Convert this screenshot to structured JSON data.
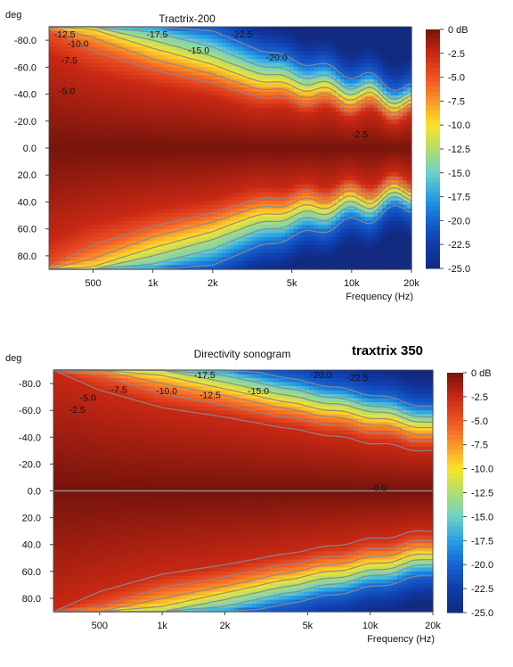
{
  "chart_data": [
    {
      "type": "heatmap",
      "title": "Tractrix-200",
      "subtitle": "",
      "ylabel": "deg",
      "xlabel": "Frequency (Hz)",
      "x_scale": "log",
      "xlim": [
        300,
        20000
      ],
      "ylim": [
        -90,
        90
      ],
      "y_ticks": [
        -80,
        -60,
        -40,
        -20,
        0,
        20,
        40,
        60,
        80
      ],
      "y_tick_labels": [
        "-80.0",
        "-60.0",
        "-40.0",
        "-20.0",
        "0.0",
        "20.0",
        "40.0",
        "60.0",
        "80.0"
      ],
      "x_ticks": [
        500,
        1000,
        2000,
        5000,
        10000,
        20000
      ],
      "x_tick_labels": [
        "500",
        "1k",
        "2k",
        "5k",
        "10k",
        "20k"
      ],
      "colorbar": {
        "ticks": [
          "0 dB",
          "-2.5",
          "-5.0",
          "-7.5",
          "-10.0",
          "-12.5",
          "-15.0",
          "-17.5",
          "-20.0",
          "-22.5",
          "-25.0"
        ],
        "min": -25,
        "max": 0
      },
      "contour_levels": [
        -5,
        -7.5,
        -10,
        -12.5,
        -15,
        -20
      ],
      "contours_half_angle_deg": {
        "frequencies_hz": [
          300,
          500,
          1000,
          2000,
          3000,
          5000,
          10000,
          20000
        ],
        "series": [
          {
            "level_db": -2.5,
            "values": [
              70,
              55,
              45,
              38,
              30,
              28,
              25,
              20
            ]
          },
          {
            "level_db": -5.0,
            "values": [
              88,
              72,
              58,
              48,
              40,
              35,
              30,
              25
            ]
          },
          {
            "level_db": -7.5,
            "values": [
              90,
              82,
              66,
              55,
              46,
              41,
              35,
              29
            ]
          },
          {
            "level_db": -10.0,
            "values": [
              90,
              88,
              74,
              62,
              52,
              46,
              39,
              32
            ]
          },
          {
            "level_db": -12.5,
            "values": [
              90,
              90,
              80,
              68,
              58,
              51,
              43,
              35
            ]
          },
          {
            "level_db": -15.0,
            "values": [
              90,
              90,
              86,
              75,
              64,
              56,
              47,
              38
            ]
          },
          {
            "level_db": -17.5,
            "values": [
              90,
              90,
              90,
              81,
              70,
              61,
              51,
              41
            ]
          },
          {
            "level_db": -20.0,
            "values": [
              90,
              90,
              90,
              87,
              76,
              66,
              55,
              44
            ]
          }
        ]
      },
      "contour_label_texts": [
        "-12.5",
        "-10.0",
        "-7.5",
        "-5.0",
        "-17.5",
        "-15.0",
        "-22.5",
        "-20.0",
        "-2.5"
      ]
    },
    {
      "type": "heatmap",
      "title": "Directivity sonogram",
      "subtitle": "traxtrix 350",
      "ylabel": "deg",
      "xlabel": "Frequency (Hz)",
      "x_scale": "log",
      "xlim": [
        300,
        20000
      ],
      "ylim": [
        -90,
        90
      ],
      "y_ticks": [
        -80,
        -60,
        -40,
        -20,
        0,
        20,
        40,
        60,
        80
      ],
      "y_tick_labels": [
        "-80.0",
        "-60.0",
        "-40.0",
        "-20.0",
        "0.0",
        "20.0",
        "40.0",
        "60.0",
        "80.0"
      ],
      "x_ticks": [
        500,
        1000,
        2000,
        5000,
        10000,
        20000
      ],
      "x_tick_labels": [
        "500",
        "1k",
        "2k",
        "5k",
        "10k",
        "20k"
      ],
      "colorbar": {
        "ticks": [
          "0 dB",
          "-2.5",
          "-5.0",
          "-7.5",
          "-10.0",
          "-12.5",
          "-15.0",
          "-17.5",
          "-20.0",
          "-22.5",
          "-25.0"
        ],
        "min": -25,
        "max": 0
      },
      "contour_levels": [
        -2.5,
        -5,
        -7.5,
        -10,
        -12.5,
        -15,
        -20
      ],
      "contours_half_angle_deg": {
        "frequencies_hz": [
          300,
          500,
          1000,
          2000,
          3000,
          5000,
          10000,
          20000
        ],
        "series": [
          {
            "level_db": -2.5,
            "values": [
              90,
              75,
              62,
              55,
              50,
              44,
              36,
              29
            ]
          },
          {
            "level_db": -5.0,
            "values": [
              90,
              86,
              72,
              64,
              58,
              52,
              44,
              36
            ]
          },
          {
            "level_db": -7.5,
            "values": [
              90,
              90,
              80,
              71,
              65,
              58,
              50,
              41
            ]
          },
          {
            "level_db": -10.0,
            "values": [
              90,
              90,
              86,
              76,
              70,
              63,
              55,
              46
            ]
          },
          {
            "level_db": -12.5,
            "values": [
              90,
              90,
              90,
              81,
              75,
              68,
              60,
              50
            ]
          },
          {
            "level_db": -15.0,
            "values": [
              90,
              90,
              90,
              86,
              80,
              73,
              64,
              54
            ]
          },
          {
            "level_db": -17.5,
            "values": [
              90,
              90,
              90,
              90,
              84,
              77,
              68,
              58
            ]
          },
          {
            "level_db": -20.0,
            "values": [
              90,
              90,
              90,
              90,
              88,
              81,
              72,
              62
            ]
          }
        ]
      },
      "contour_label_texts": [
        "-7.5",
        "-5.0",
        "-2.5",
        "-10.0",
        "-17.5",
        "-12.5",
        "-15.0",
        "-20.0",
        "-22.5",
        "-0.0"
      ]
    }
  ]
}
